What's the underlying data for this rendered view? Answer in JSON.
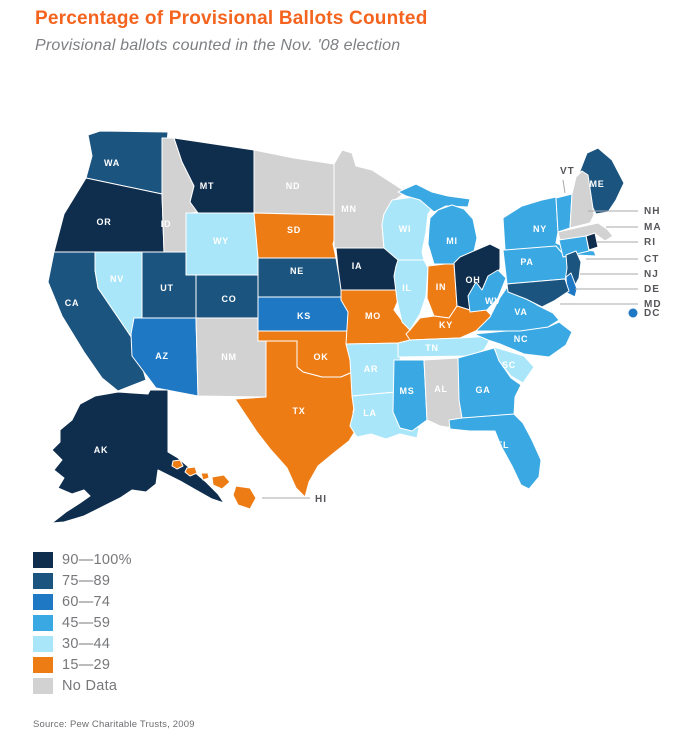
{
  "header": {
    "title": "Percentage of Provisional Ballots Counted",
    "subtitle": "Provisional ballots counted in the Nov. '08 election",
    "title_color": "#f4641e",
    "subtitle_color": "#7d7f83"
  },
  "source": "Source: Pew Charitable Trusts, 2009",
  "legend": {
    "position": "bottom-left",
    "colors": {
      "p90": "#0f2e4e",
      "p75": "#1c5480",
      "p60": "#1e78c4",
      "p45": "#3aa8e2",
      "p30": "#aae6f9",
      "p15": "#ee7c15",
      "nodata": "#d2d2d2"
    },
    "items": [
      {
        "key": "p90",
        "label": "90—100%"
      },
      {
        "key": "p75",
        "label": "75—89"
      },
      {
        "key": "p60",
        "label": "60—74"
      },
      {
        "key": "p45",
        "label": "45—59"
      },
      {
        "key": "p30",
        "label": "30—44"
      },
      {
        "key": "p15",
        "label": "15—29"
      },
      {
        "key": "nodata",
        "label": "No Data"
      }
    ]
  },
  "chart_data": {
    "type": "heatmap",
    "subtype": "us-choropleth",
    "title": "Percentage of Provisional Ballots Counted",
    "subtitle": "Provisional ballots counted in the Nov. '08 election",
    "legend_position": "bottom-left",
    "categories": [
      "90—100%",
      "75—89",
      "60—74",
      "45—59",
      "30—44",
      "15—29",
      "No Data"
    ],
    "series": [
      {
        "name": "90—100%",
        "states": [
          "OR",
          "MT",
          "IA",
          "OH",
          "AK",
          "RI"
        ]
      },
      {
        "name": "75—89",
        "states": [
          "WA",
          "CA",
          "UT",
          "CO",
          "NE",
          "ME",
          "NJ",
          "MD"
        ]
      },
      {
        "name": "60—74",
        "states": [
          "AZ",
          "KS",
          "DE",
          "DC"
        ]
      },
      {
        "name": "45—59",
        "states": [
          "MI",
          "NY",
          "PA",
          "WV",
          "VA",
          "NC",
          "GA",
          "FL",
          "MS",
          "CT",
          "VT"
        ]
      },
      {
        "name": "30—44",
        "states": [
          "NV",
          "WY",
          "WI",
          "IL",
          "AR",
          "LA",
          "TN",
          "SC"
        ]
      },
      {
        "name": "15—29",
        "states": [
          "SD",
          "MO",
          "IN",
          "KY",
          "OK",
          "TX",
          "HI"
        ]
      },
      {
        "name": "No Data",
        "states": [
          "ID",
          "ND",
          "MN",
          "NM",
          "AL",
          "NH",
          "MA"
        ]
      }
    ]
  },
  "map": {
    "states": [
      {
        "abbr": "WA",
        "category": "p75"
      },
      {
        "abbr": "OR",
        "category": "p90"
      },
      {
        "abbr": "CA",
        "category": "p75"
      },
      {
        "abbr": "NV",
        "category": "p30"
      },
      {
        "abbr": "ID",
        "category": "nodata"
      },
      {
        "abbr": "MT",
        "category": "p90"
      },
      {
        "abbr": "WY",
        "category": "p30"
      },
      {
        "abbr": "UT",
        "category": "p75"
      },
      {
        "abbr": "CO",
        "category": "p75"
      },
      {
        "abbr": "AZ",
        "category": "p60"
      },
      {
        "abbr": "NM",
        "category": "nodata"
      },
      {
        "abbr": "ND",
        "category": "nodata"
      },
      {
        "abbr": "SD",
        "category": "p15"
      },
      {
        "abbr": "NE",
        "category": "p75"
      },
      {
        "abbr": "KS",
        "category": "p60"
      },
      {
        "abbr": "OK",
        "category": "p15"
      },
      {
        "abbr": "TX",
        "category": "p15"
      },
      {
        "abbr": "MN",
        "category": "nodata"
      },
      {
        "abbr": "IA",
        "category": "p90"
      },
      {
        "abbr": "MO",
        "category": "p15"
      },
      {
        "abbr": "AR",
        "category": "p30"
      },
      {
        "abbr": "LA",
        "category": "p30"
      },
      {
        "abbr": "WI",
        "category": "p30"
      },
      {
        "abbr": "IL",
        "category": "p30"
      },
      {
        "abbr": "IN",
        "category": "p15"
      },
      {
        "abbr": "MI",
        "category": "p45"
      },
      {
        "abbr": "OH",
        "category": "p90"
      },
      {
        "abbr": "KY",
        "category": "p15"
      },
      {
        "abbr": "TN",
        "category": "p30"
      },
      {
        "abbr": "MS",
        "category": "p45"
      },
      {
        "abbr": "AL",
        "category": "nodata"
      },
      {
        "abbr": "GA",
        "category": "p45"
      },
      {
        "abbr": "FL",
        "category": "p45"
      },
      {
        "abbr": "SC",
        "category": "p30"
      },
      {
        "abbr": "NC",
        "category": "p45"
      },
      {
        "abbr": "VA",
        "category": "p45"
      },
      {
        "abbr": "WV",
        "category": "p45"
      },
      {
        "abbr": "PA",
        "category": "p45"
      },
      {
        "abbr": "NY",
        "category": "p45"
      },
      {
        "abbr": "ME",
        "category": "p75"
      },
      {
        "abbr": "VT",
        "category": "p45"
      },
      {
        "abbr": "NH",
        "category": "nodata"
      },
      {
        "abbr": "MA",
        "category": "nodata"
      },
      {
        "abbr": "RI",
        "category": "p90"
      },
      {
        "abbr": "CT",
        "category": "p45"
      },
      {
        "abbr": "NJ",
        "category": "p75"
      },
      {
        "abbr": "DE",
        "category": "p60"
      },
      {
        "abbr": "MD",
        "category": "p75"
      },
      {
        "abbr": "DC",
        "category": "p60"
      },
      {
        "abbr": "AK",
        "category": "p90"
      },
      {
        "abbr": "HI",
        "category": "p15"
      }
    ],
    "callouts": [
      "NH",
      "MA",
      "RI",
      "CT",
      "NJ",
      "DE",
      "MD",
      "DC"
    ],
    "leader_labels": [
      "VT",
      "HI"
    ]
  }
}
